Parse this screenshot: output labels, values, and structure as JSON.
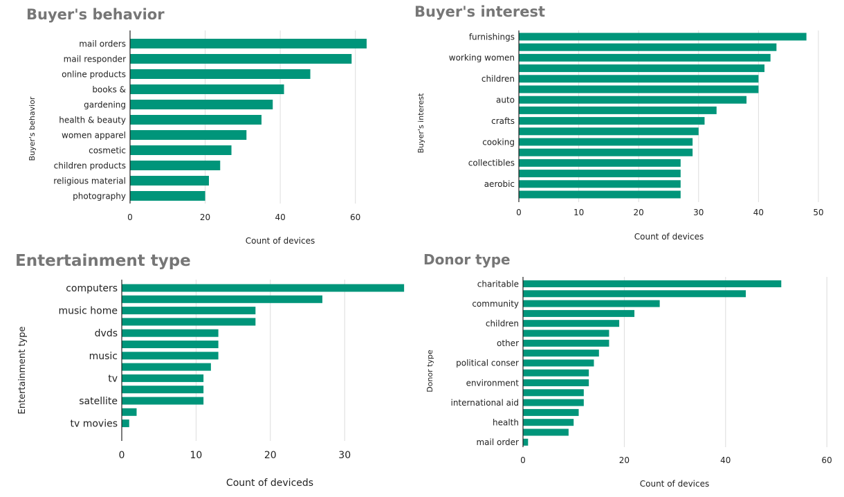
{
  "colors": {
    "bar": "#00957a",
    "grid": "#dcdcdc",
    "axis": "#222222",
    "title": "#767676"
  },
  "chart_data": [
    {
      "id": "buyers-behavior",
      "type": "bar",
      "orientation": "horizontal",
      "title": "Buyer's behavior",
      "ylabel": "Buyer's behavior",
      "xlabel": "Count of devices",
      "xlim": [
        0,
        70
      ],
      "xticks": [
        0,
        20,
        40,
        60
      ],
      "grid": true,
      "categories": [
        "mail orders",
        "mail responder",
        "online products",
        "books &",
        "gardening",
        "health & beauty",
        "women apparel",
        "cosmetic",
        "children products",
        "religious material",
        "photography"
      ],
      "bar_labels": [
        "mail orders",
        "mail responder",
        "online products",
        "books &",
        "gardening",
        "health & beauty",
        "women apparel",
        "cosmetic",
        "children products",
        "religious material",
        "photography"
      ],
      "values": [
        63,
        59,
        48,
        41,
        38,
        35,
        31,
        27,
        24,
        21,
        20
      ]
    },
    {
      "id": "buyers-interest",
      "type": "bar",
      "orientation": "horizontal",
      "title": "Buyer's interest",
      "ylabel": "Buyer's interest",
      "xlabel": "Count of devices",
      "xlim": [
        0,
        50
      ],
      "xticks": [
        0,
        10,
        20,
        30,
        40,
        50
      ],
      "grid": true,
      "categories": [
        "furnishings",
        "",
        "working women",
        "",
        "children",
        "",
        "auto",
        "",
        "crafts",
        "",
        "cooking",
        "",
        "collectibles",
        "",
        "aerobic",
        ""
      ],
      "bar_labels": [
        "furnishings",
        "",
        "working women",
        "",
        "children",
        "",
        "auto",
        "",
        "crafts",
        "",
        "cooking",
        "",
        "collectibles",
        "",
        "aerobic",
        ""
      ],
      "values": [
        48,
        43,
        42,
        41,
        40,
        40,
        38,
        33,
        31,
        30,
        29,
        29,
        27,
        27,
        27,
        27
      ]
    },
    {
      "id": "entertainment-type",
      "type": "bar",
      "orientation": "horizontal",
      "title": "Entertainment type",
      "ylabel": "Entertainment type",
      "xlabel": "Count of deviceds",
      "xlim": [
        0,
        38
      ],
      "xticks": [
        0,
        10,
        20,
        30
      ],
      "grid": true,
      "categories": [
        "computers",
        "",
        "music home",
        "",
        "dvds",
        "",
        "music",
        "",
        "tv",
        "",
        "satellite",
        "",
        "tv movies"
      ],
      "bar_labels": [
        "computers",
        "",
        "music home",
        "",
        "dvds",
        "",
        "music",
        "",
        "tv",
        "",
        "satellite",
        "",
        "tv movies"
      ],
      "values": [
        38,
        27,
        18,
        18,
        13,
        13,
        13,
        12,
        11,
        11,
        11,
        2,
        1
      ]
    },
    {
      "id": "donor-type",
      "type": "bar",
      "orientation": "horizontal",
      "title": "Donor type",
      "ylabel": "Donor type",
      "xlabel": "Count of devices",
      "xlim": [
        0,
        60
      ],
      "xticks": [
        0,
        20,
        40,
        60
      ],
      "grid": true,
      "categories": [
        "charitable",
        "",
        "community",
        "",
        "children",
        "",
        "other",
        "",
        "political conser",
        "",
        "environment",
        "",
        "international aid",
        "",
        "health",
        "",
        "mail order"
      ],
      "bar_labels": [
        "charitable",
        "",
        "community",
        "",
        "children",
        "",
        "other",
        "",
        "political conser",
        "",
        "environment",
        "",
        "international aid",
        "",
        "health",
        "",
        "mail order"
      ],
      "values": [
        51,
        44,
        27,
        22,
        19,
        17,
        17,
        15,
        14,
        13,
        13,
        12,
        12,
        11,
        10,
        9,
        1
      ]
    }
  ]
}
